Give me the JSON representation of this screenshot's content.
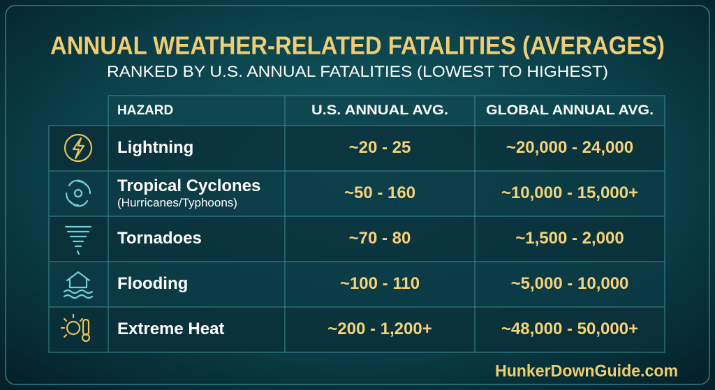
{
  "header": {
    "title": "ANNUAL WEATHER-RELATED FATALITIES (AVERAGES)",
    "subtitle": "RANKED BY U.S. ANNUAL FATALITIES (LOWEST TO HIGHEST)"
  },
  "table": {
    "columns": [
      "HAZARD",
      "U.S. ANNUAL AVG.",
      "GLOBAL ANNUAL AVG."
    ],
    "rows": [
      {
        "hazard": "Lightning",
        "us": "~20 - 25",
        "global": "~20,000 - 24,000"
      },
      {
        "hazard": "Tropical Cyclones",
        "note": "(Hurricanes/Typhoons)",
        "us": "~50 - 160",
        "global": "~10,000 - 15,000+"
      },
      {
        "hazard": "Tornadoes",
        "us": "~70 - 80",
        "global": "~1,500 - 2,000"
      },
      {
        "hazard": "Flooding",
        "us": "~100 - 110",
        "global": "~5,000 - 10,000"
      },
      {
        "hazard": "Extreme Heat",
        "us": "~200 - 1,200+",
        "global": "~48,000 - 50,000+"
      }
    ]
  },
  "footer": {
    "site": "HunkerDownGuide.com"
  }
}
